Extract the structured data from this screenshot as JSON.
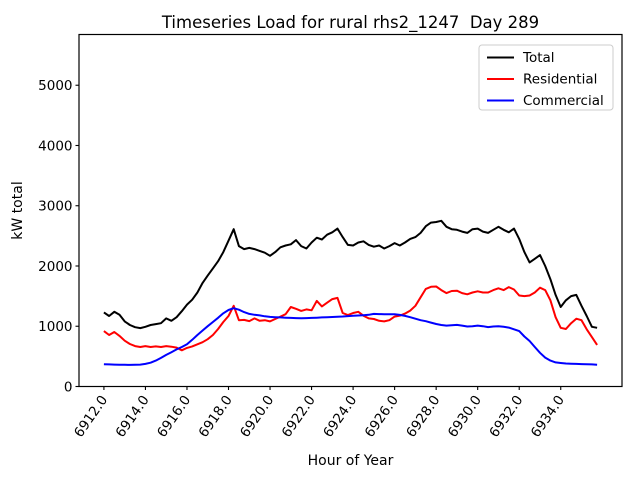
{
  "chart_data": {
    "type": "line",
    "title": "Timeseries Load for rural rhs2_1247  Day 289",
    "xlabel": "Hour of Year",
    "ylabel": "kW total",
    "grid": false,
    "legend_position": "upper right",
    "xlim": [
      6910.8,
      6936.95
    ],
    "ylim": [
      0,
      5842
    ],
    "xticks": [
      6912,
      6914,
      6916,
      6918,
      6920,
      6922,
      6924,
      6926,
      6928,
      6930,
      6932,
      6934
    ],
    "xtick_labels": [
      "6912.0",
      "6914.0",
      "6916.0",
      "6918.0",
      "6920.0",
      "6922.0",
      "6924.0",
      "6926.0",
      "6928.0",
      "6930.0",
      "6932.0",
      "6934.0"
    ],
    "yticks": [
      0,
      1000,
      2000,
      3000,
      4000,
      5000
    ],
    "ytick_labels": [
      "0",
      "1000",
      "2000",
      "3000",
      "4000",
      "5000"
    ],
    "x_start": 6912.0,
    "x_step": 0.25,
    "series": [
      {
        "name": "Total",
        "color": "#000000",
        "values": [
          1230,
          1170,
          1240,
          1190,
          1080,
          1020,
          985,
          970,
          990,
          1020,
          1035,
          1050,
          1130,
          1090,
          1150,
          1250,
          1360,
          1440,
          1560,
          1720,
          1840,
          1960,
          2080,
          2230,
          2420,
          2610,
          2330,
          2280,
          2300,
          2280,
          2250,
          2220,
          2170,
          2230,
          2310,
          2340,
          2360,
          2430,
          2330,
          2290,
          2390,
          2470,
          2440,
          2520,
          2560,
          2620,
          2480,
          2350,
          2340,
          2390,
          2410,
          2350,
          2320,
          2340,
          2290,
          2330,
          2380,
          2340,
          2390,
          2450,
          2480,
          2550,
          2660,
          2720,
          2730,
          2750,
          2650,
          2610,
          2600,
          2570,
          2550,
          2610,
          2620,
          2570,
          2550,
          2600,
          2650,
          2600,
          2560,
          2620,
          2450,
          2230,
          2060,
          2120,
          2180,
          2000,
          1780,
          1520,
          1320,
          1430,
          1500,
          1520,
          1340,
          1170,
          990,
          975
        ]
      },
      {
        "name": "Residential",
        "color": "#ff0000",
        "values": [
          920,
          855,
          905,
          840,
          760,
          705,
          670,
          655,
          670,
          655,
          665,
          655,
          670,
          660,
          645,
          600,
          640,
          665,
          700,
          735,
          785,
          855,
          955,
          1070,
          1170,
          1340,
          1100,
          1105,
          1085,
          1130,
          1090,
          1100,
          1080,
          1120,
          1160,
          1200,
          1320,
          1290,
          1255,
          1280,
          1265,
          1420,
          1330,
          1390,
          1450,
          1470,
          1220,
          1185,
          1220,
          1240,
          1175,
          1130,
          1120,
          1090,
          1080,
          1100,
          1160,
          1175,
          1210,
          1260,
          1340,
          1480,
          1620,
          1655,
          1660,
          1600,
          1550,
          1585,
          1590,
          1550,
          1530,
          1560,
          1580,
          1560,
          1560,
          1600,
          1630,
          1600,
          1650,
          1610,
          1510,
          1500,
          1510,
          1560,
          1640,
          1600,
          1430,
          1150,
          975,
          955,
          1050,
          1125,
          1100,
          950,
          820,
          690
        ]
      },
      {
        "name": "Commercial",
        "color": "#0000ff",
        "values": [
          370,
          366,
          363,
          361,
          360,
          359,
          360,
          363,
          375,
          395,
          430,
          475,
          525,
          570,
          615,
          655,
          700,
          775,
          855,
          930,
          1000,
          1070,
          1140,
          1215,
          1270,
          1300,
          1275,
          1235,
          1205,
          1190,
          1180,
          1165,
          1155,
          1150,
          1146,
          1142,
          1139,
          1136,
          1134,
          1136,
          1139,
          1142,
          1146,
          1150,
          1154,
          1158,
          1162,
          1168,
          1174,
          1179,
          1184,
          1190,
          1205,
          1202,
          1200,
          1199,
          1198,
          1188,
          1172,
          1150,
          1126,
          1100,
          1084,
          1060,
          1038,
          1020,
          1010,
          1016,
          1022,
          1010,
          996,
          1000,
          1010,
          1000,
          986,
          996,
          1000,
          990,
          978,
          950,
          920,
          830,
          755,
          655,
          560,
          480,
          430,
          400,
          390,
          382,
          378,
          375,
          372,
          369,
          366,
          362
        ]
      }
    ],
    "style": {
      "frame_color": "#000000",
      "legend_border_color": "#cccccc",
      "background": "#ffffff"
    }
  }
}
